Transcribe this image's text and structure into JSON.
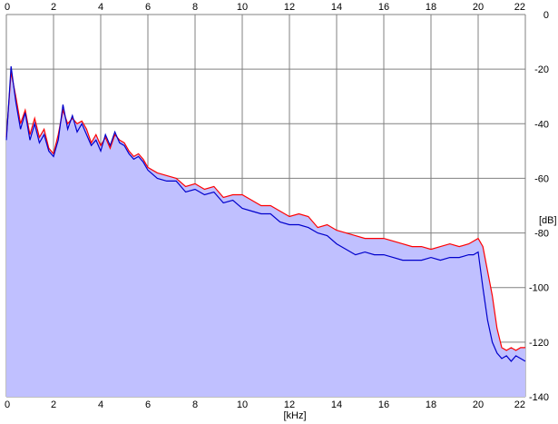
{
  "chart_data": {
    "type": "area",
    "xlabel": "[kHz]",
    "ylabel": "[dB]",
    "xlim": [
      0,
      22
    ],
    "ylim": [
      -140,
      0
    ],
    "x_ticks": [
      "0",
      "2",
      "4",
      "6",
      "8",
      "10",
      "12",
      "14",
      "16",
      "18",
      "20",
      "22"
    ],
    "y_ticks": [
      "0",
      "-20",
      "-40",
      "-60",
      "-80",
      "-100",
      "-120",
      "-140"
    ],
    "grid": true,
    "series": [
      {
        "color": "#ff0000",
        "x": [
          0,
          0.2,
          0.4,
          0.6,
          0.8,
          1.0,
          1.2,
          1.4,
          1.6,
          1.8,
          2.0,
          2.2,
          2.4,
          2.6,
          2.8,
          3.0,
          3.2,
          3.4,
          3.6,
          3.8,
          4.0,
          4.2,
          4.4,
          4.6,
          4.8,
          5.0,
          5.2,
          5.4,
          5.6,
          5.8,
          6.0,
          6.4,
          6.8,
          7.2,
          7.6,
          8.0,
          8.4,
          8.8,
          9.2,
          9.6,
          10.0,
          10.4,
          10.8,
          11.2,
          11.6,
          12.0,
          12.4,
          12.8,
          13.2,
          13.6,
          14.0,
          14.4,
          14.8,
          15.2,
          15.6,
          16.0,
          16.4,
          16.8,
          17.2,
          17.6,
          18.0,
          18.4,
          18.8,
          19.2,
          19.6,
          19.8,
          20.0,
          20.2,
          20.4,
          20.6,
          20.8,
          21.0,
          21.2,
          21.4,
          21.6,
          21.8,
          22.0
        ],
        "y": [
          -45,
          -21,
          -30,
          -40,
          -35,
          -44,
          -38,
          -45,
          -42,
          -49,
          -51,
          -44,
          -35,
          -40,
          -38,
          -40,
          -39,
          -42,
          -47,
          -44,
          -48,
          -45,
          -49,
          -44,
          -46,
          -47,
          -50,
          -52,
          -51,
          -53,
          -56,
          -58,
          -59,
          -60,
          -63,
          -62,
          -64,
          -63,
          -67,
          -66,
          -66,
          -68,
          -70,
          -70,
          -72,
          -74,
          -73,
          -74,
          -78,
          -77,
          -79,
          -80,
          -81,
          -82,
          -82,
          -82,
          -83,
          -84,
          -85,
          -85,
          -86,
          -85,
          -84,
          -85,
          -84,
          -83,
          -82,
          -85,
          -94,
          -103,
          -115,
          -122,
          -123,
          -122,
          -123,
          -122,
          -122
        ]
      },
      {
        "color": "#0000cc",
        "x": [
          0,
          0.2,
          0.4,
          0.6,
          0.8,
          1.0,
          1.2,
          1.4,
          1.6,
          1.8,
          2.0,
          2.2,
          2.4,
          2.6,
          2.8,
          3.0,
          3.2,
          3.4,
          3.6,
          3.8,
          4.0,
          4.2,
          4.4,
          4.6,
          4.8,
          5.0,
          5.2,
          5.4,
          5.6,
          5.8,
          6.0,
          6.4,
          6.8,
          7.2,
          7.6,
          8.0,
          8.4,
          8.8,
          9.2,
          9.6,
          10.0,
          10.4,
          10.8,
          11.2,
          11.6,
          12.0,
          12.4,
          12.8,
          13.2,
          13.6,
          14.0,
          14.4,
          14.8,
          15.2,
          15.6,
          16.0,
          16.4,
          16.8,
          17.2,
          17.6,
          18.0,
          18.4,
          18.8,
          19.2,
          19.6,
          19.8,
          20.0,
          20.2,
          20.4,
          20.6,
          20.8,
          21.0,
          21.2,
          21.4,
          21.6,
          21.8,
          22.0
        ],
        "y": [
          -46,
          -19,
          -32,
          -42,
          -36,
          -46,
          -40,
          -47,
          -44,
          -50,
          -52,
          -46,
          -33,
          -42,
          -37,
          -43,
          -40,
          -44,
          -48,
          -46,
          -50,
          -44,
          -48,
          -43,
          -47,
          -48,
          -51,
          -53,
          -52,
          -54,
          -57,
          -60,
          -61,
          -61,
          -65,
          -64,
          -66,
          -65,
          -69,
          -68,
          -71,
          -72,
          -73,
          -73,
          -76,
          -77,
          -77,
          -78,
          -80,
          -81,
          -84,
          -86,
          -88,
          -87,
          -88,
          -88,
          -89,
          -90,
          -90,
          -90,
          -89,
          -90,
          -89,
          -89,
          -88,
          -88,
          -87,
          -100,
          -112,
          -120,
          -124,
          -126,
          -125,
          -127,
          -125,
          -126,
          -127
        ]
      }
    ]
  }
}
